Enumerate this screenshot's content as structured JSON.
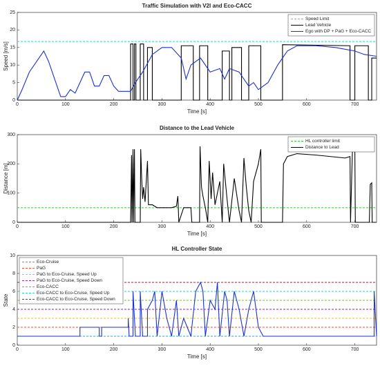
{
  "chart_data": [
    {
      "type": "line",
      "title": "Traffic Simulation with V2I and Eco-CACC",
      "xlabel": "Time [s]",
      "ylabel": "Speed [m/s]",
      "xlim": [
        0,
        745
      ],
      "ylim": [
        0,
        25
      ],
      "xticks": [
        0,
        100,
        200,
        300,
        400,
        500,
        600,
        700
      ],
      "yticks": [
        0,
        5,
        10,
        15,
        20,
        25
      ],
      "legend": "top-right",
      "series": [
        {
          "name": "Speed Limit",
          "color": "#22d3e0",
          "dashed": true,
          "x": [
            0,
            745
          ],
          "values": [
            16.7,
            16.7
          ]
        },
        {
          "name": "Lead Vehicle",
          "color": "#000000",
          "dashed": false,
          "x": [
            0,
            235,
            235,
            240,
            240,
            243,
            243,
            246,
            246,
            255,
            255,
            262,
            262,
            270,
            270,
            280,
            280,
            340,
            340,
            365,
            365,
            378,
            378,
            395,
            395,
            425,
            425,
            440,
            440,
            445,
            445,
            465,
            465,
            480,
            480,
            505,
            505,
            550,
            550,
            690,
            690,
            700,
            700,
            728,
            728,
            735,
            735,
            745
          ],
          "values": [
            0,
            0,
            16,
            16,
            0,
            0,
            16,
            16,
            0,
            0,
            16,
            16,
            0,
            0,
            15,
            15,
            0,
            0,
            15.5,
            15.5,
            0,
            0,
            15.5,
            15.5,
            0,
            0,
            14,
            14,
            0,
            0,
            15,
            15,
            0,
            0,
            15.5,
            15.5,
            0,
            0,
            15.8,
            15.5,
            0,
            0,
            15.5,
            15.5,
            0,
            0,
            12,
            12
          ]
        },
        {
          "name": "Ego with DP + PaG + Eco-CACC",
          "color": "#1a2fd6",
          "dashed": false,
          "x": [
            0,
            10,
            25,
            45,
            55,
            65,
            75,
            85,
            90,
            100,
            110,
            120,
            130,
            140,
            150,
            160,
            170,
            180,
            190,
            200,
            210,
            235,
            245,
            260,
            280,
            300,
            320,
            340,
            350,
            360,
            380,
            400,
            420,
            430,
            440,
            460,
            470,
            480,
            490,
            500,
            520,
            540,
            560,
            580,
            620,
            660,
            700,
            720,
            745
          ],
          "values": [
            0,
            3,
            8,
            12,
            14,
            11,
            7,
            3,
            1,
            1,
            3,
            2,
            5,
            8,
            8,
            4,
            4,
            7,
            7,
            4,
            2.5,
            2.5,
            5,
            8,
            13,
            15,
            15,
            12,
            6,
            10,
            12,
            8,
            9,
            6,
            9,
            8,
            6,
            4,
            5,
            3,
            5,
            10,
            14,
            15.5,
            15.5,
            15,
            14,
            13,
            12.5
          ]
        }
      ]
    },
    {
      "type": "line",
      "title": "Distance to the Lead Vehicle",
      "xlabel": "Time [s]",
      "ylabel": "Distance [m]",
      "xlim": [
        0,
        745
      ],
      "ylim": [
        0,
        300
      ],
      "xticks": [
        0,
        100,
        200,
        300,
        400,
        500,
        600,
        700
      ],
      "yticks": [
        0,
        100,
        200,
        300
      ],
      "legend": "top-right",
      "series": [
        {
          "name": "HL controller limit",
          "color": "#2ecc2e",
          "dashed": true,
          "x": [
            0,
            745
          ],
          "values": [
            50,
            50
          ]
        },
        {
          "name": "Distance to Lead",
          "color": "#000000",
          "dashed": false,
          "x": [
            0,
            235,
            237,
            238,
            240,
            241,
            243,
            244,
            255,
            256,
            258,
            260,
            262,
            265,
            270,
            272,
            280,
            290,
            320,
            330,
            333,
            335,
            345,
            360,
            362,
            378,
            379,
            382,
            385,
            390,
            395,
            398,
            402,
            405,
            410,
            420,
            425,
            428,
            435,
            440,
            450,
            460,
            465,
            470,
            475,
            480,
            485,
            490,
            500,
            505,
            506,
            550,
            552,
            560,
            580,
            620,
            680,
            690,
            691,
            695,
            700,
            701,
            730,
            732,
            735,
            736,
            745
          ],
          "values": [
            0,
            0,
            230,
            0,
            250,
            0,
            250,
            0,
            0,
            250,
            150,
            80,
            120,
            70,
            210,
            60,
            60,
            50,
            50,
            55,
            90,
            0,
            50,
            50,
            0,
            0,
            260,
            120,
            90,
            50,
            0,
            210,
            80,
            170,
            60,
            140,
            0,
            200,
            80,
            0,
            150,
            40,
            0,
            220,
            120,
            40,
            0,
            140,
            200,
            250,
            0,
            0,
            200,
            225,
            235,
            230,
            220,
            225,
            0,
            245,
            250,
            0,
            0,
            130,
            135,
            0,
            0
          ]
        }
      ]
    },
    {
      "type": "line",
      "title": "HL Controller State",
      "xlabel": "Time [s]",
      "ylabel": "State",
      "xlim": [
        0,
        745
      ],
      "ylim": [
        0,
        10
      ],
      "xticks": [
        0,
        100,
        200,
        300,
        400,
        500,
        600,
        700
      ],
      "yticks": [
        0,
        2,
        4,
        6,
        8,
        10
      ],
      "legend": "top-left",
      "series": [
        {
          "name": "Eco-Cruise",
          "color": "#2aa4e0",
          "dashed": true,
          "x": [
            0,
            745
          ],
          "values": [
            1,
            1
          ]
        },
        {
          "name": "PaG",
          "color": "#f0502a",
          "dashed": true,
          "x": [
            0,
            745
          ],
          "values": [
            2,
            2
          ]
        },
        {
          "name": "PaG to Eco-Cruise, Speed Up",
          "color": "#e8c020",
          "dashed": true,
          "x": [
            0,
            745
          ],
          "values": [
            3,
            3
          ]
        },
        {
          "name": "PaG to Eco-Cruise, Speed Down",
          "color": "#8a2ab0",
          "dashed": true,
          "x": [
            0,
            745
          ],
          "values": [
            4,
            4
          ]
        },
        {
          "name": "Eco-CACC",
          "color": "#6cc22a",
          "dashed": true,
          "x": [
            0,
            745
          ],
          "values": [
            5,
            5
          ]
        },
        {
          "name": "Eco-CACC to Eco-Cruise, Speed Up",
          "color": "#22d3e0",
          "dashed": true,
          "x": [
            0,
            745
          ],
          "values": [
            6,
            6
          ]
        },
        {
          "name": "Eco-CACC to Eco-Cruise, Speed Down",
          "color": "#b01a2a",
          "dashed": true,
          "x": [
            0,
            745
          ],
          "values": [
            7,
            7
          ]
        },
        {
          "color": "#1a2fd6",
          "dashed": false,
          "x": [
            0,
            130,
            130,
            170,
            170,
            175,
            175,
            230,
            230,
            232,
            240,
            240,
            245,
            255,
            255,
            260,
            270,
            270,
            280,
            285,
            290,
            300,
            310,
            320,
            330,
            335,
            345,
            360,
            370,
            380,
            385,
            390,
            400,
            410,
            415,
            420,
            430,
            435,
            440,
            450,
            460,
            470,
            480,
            490,
            500,
            510,
            740,
            740,
            745
          ],
          "values": [
            1,
            1,
            2,
            2,
            1,
            1,
            2,
            2,
            3,
            1,
            1,
            6,
            1,
            1,
            6,
            1,
            1,
            4,
            5,
            6,
            1,
            6,
            3,
            1,
            5,
            1,
            3,
            1,
            6,
            7,
            6,
            1,
            5,
            4,
            7,
            1,
            6,
            5,
            1,
            6,
            4,
            1,
            4,
            6,
            2,
            1,
            1,
            6,
            1
          ]
        }
      ]
    }
  ]
}
